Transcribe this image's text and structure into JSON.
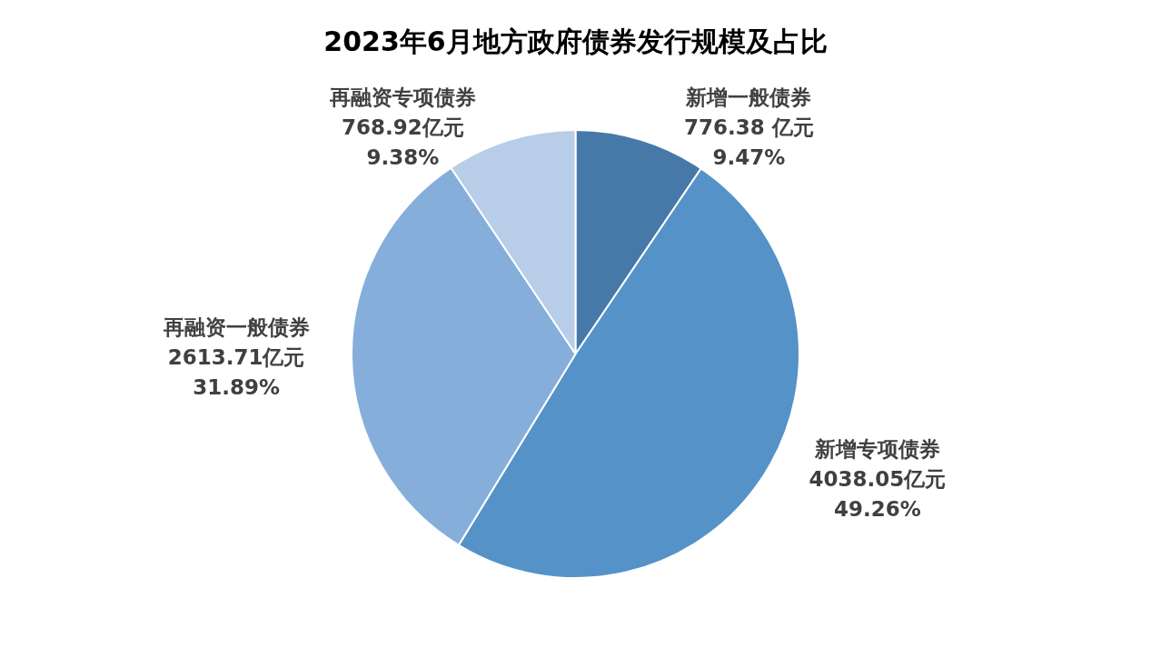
{
  "chart_data": {
    "type": "pie",
    "title": "2023年6月地方政府债券发行规模及占比",
    "categories": [
      "新增一般债券",
      "新增专项债券",
      "再融资一般债券",
      "再融资专项债券"
    ],
    "values": [
      776.38,
      4038.05,
      2613.71,
      768.92
    ],
    "colors": [
      "#4679a8",
      "#5592c8",
      "#85aedb",
      "#b7cde8"
    ],
    "value_labels": [
      "776.38 亿元\n9.47%",
      "4038.05亿元\n49.26%",
      "2613.71亿元\n31.89%",
      "768.92亿元\n9.38%"
    ],
    "legend": false
  }
}
